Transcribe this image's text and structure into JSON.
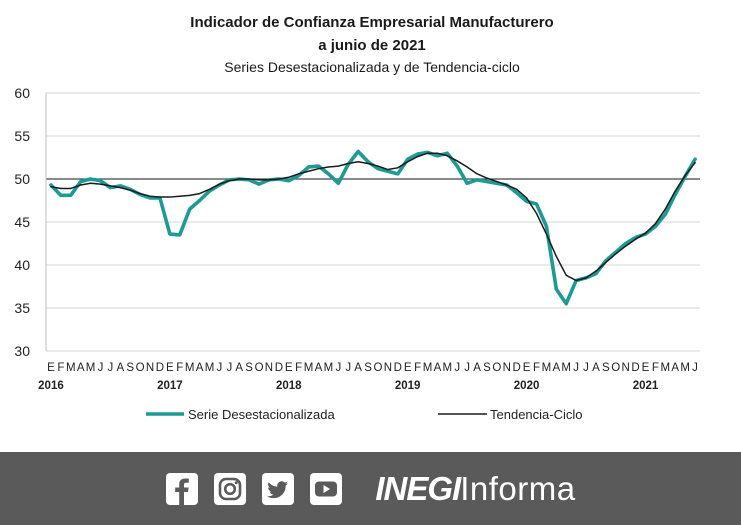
{
  "chart_data": {
    "type": "line",
    "title": "Indicador de Confianza Empresarial Manufacturero",
    "title_line2": "a junio de 2021",
    "subtitle": "Series Desestacionalizada y de Tendencia-ciclo",
    "xlabel": "",
    "ylabel": "",
    "ylim": [
      30,
      60
    ],
    "yticks": [
      "60",
      "55",
      "50",
      "45",
      "40",
      "35",
      "30"
    ],
    "grid": true,
    "legend_position": "bottom",
    "reference_line": 50,
    "month_letters": [
      "E",
      "F",
      "M",
      "A",
      "M",
      "J",
      "J",
      "A",
      "S",
      "O",
      "N",
      "D"
    ],
    "years": [
      "2016",
      "2017",
      "2018",
      "2019",
      "2020",
      "2021"
    ],
    "x": [
      "2016-01",
      "2016-02",
      "2016-03",
      "2016-04",
      "2016-05",
      "2016-06",
      "2016-07",
      "2016-08",
      "2016-09",
      "2016-10",
      "2016-11",
      "2016-12",
      "2017-01",
      "2017-02",
      "2017-03",
      "2017-04",
      "2017-05",
      "2017-06",
      "2017-07",
      "2017-08",
      "2017-09",
      "2017-10",
      "2017-11",
      "2017-12",
      "2018-01",
      "2018-02",
      "2018-03",
      "2018-04",
      "2018-05",
      "2018-06",
      "2018-07",
      "2018-08",
      "2018-09",
      "2018-10",
      "2018-11",
      "2018-12",
      "2019-01",
      "2019-02",
      "2019-03",
      "2019-04",
      "2019-05",
      "2019-06",
      "2019-07",
      "2019-08",
      "2019-09",
      "2019-10",
      "2019-11",
      "2019-12",
      "2020-01",
      "2020-02",
      "2020-03",
      "2020-04",
      "2020-05",
      "2020-06",
      "2020-07",
      "2020-08",
      "2020-09",
      "2020-10",
      "2020-11",
      "2020-12",
      "2021-01",
      "2021-02",
      "2021-03",
      "2021-04",
      "2021-05",
      "2021-06"
    ],
    "series": [
      {
        "name": "Serie Desestacionalizada",
        "color": "#1c9a94",
        "values": [
          49.3,
          48.1,
          48.1,
          49.7,
          50.0,
          49.8,
          49.0,
          49.2,
          48.8,
          48.2,
          47.8,
          47.8,
          43.6,
          43.5,
          46.5,
          47.5,
          48.6,
          49.3,
          49.9,
          50.0,
          49.9,
          49.4,
          49.9,
          50.0,
          49.8,
          50.4,
          51.4,
          51.5,
          50.6,
          49.5,
          51.7,
          53.2,
          52.0,
          51.2,
          50.9,
          50.6,
          52.3,
          52.9,
          53.1,
          52.7,
          53.0,
          51.5,
          49.5,
          49.9,
          49.7,
          49.5,
          49.3,
          48.4,
          47.4,
          47.1,
          44.5,
          37.2,
          35.5,
          38.2,
          38.5,
          39.0,
          40.5,
          41.5,
          42.5,
          43.2,
          43.6,
          44.5,
          45.9,
          48.2,
          50.3,
          52.3
        ]
      },
      {
        "name": "Tendencia-Ciclo",
        "color": "#1a1a1a",
        "values": [
          49.1,
          48.9,
          48.9,
          49.3,
          49.5,
          49.4,
          49.2,
          49.0,
          48.7,
          48.3,
          48.0,
          47.9,
          47.9,
          48.0,
          48.1,
          48.3,
          48.8,
          49.4,
          49.8,
          50.0,
          50.0,
          49.9,
          49.9,
          50.0,
          50.2,
          50.6,
          50.9,
          51.2,
          51.4,
          51.5,
          51.8,
          52.0,
          51.8,
          51.5,
          51.1,
          51.3,
          52.0,
          52.6,
          53.0,
          53.0,
          52.7,
          52.1,
          51.4,
          50.6,
          50.1,
          49.7,
          49.3,
          48.8,
          47.8,
          46.0,
          43.6,
          41.0,
          38.8,
          38.2,
          38.5,
          39.3,
          40.3,
          41.3,
          42.2,
          43.0,
          43.7,
          44.8,
          46.5,
          48.6,
          50.4,
          51.9
        ]
      }
    ]
  },
  "footer": {
    "brand_bold": "INEGI",
    "brand_light": "Informa",
    "background": "#5a5a5a",
    "icons": [
      "facebook-icon",
      "instagram-icon",
      "twitter-icon",
      "youtube-icon"
    ]
  }
}
